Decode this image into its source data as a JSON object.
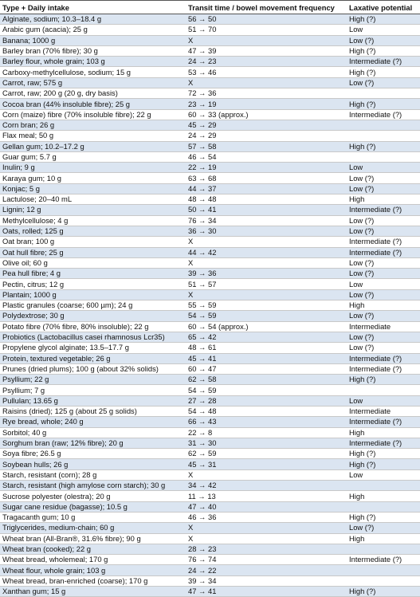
{
  "table": {
    "header": [
      "Type + Daily intake",
      "Transit time / bowel movement frequency",
      "Laxative potential"
    ],
    "rows": [
      {
        "type": "Alginate, sodium; 10.3–18.4 g",
        "transit": "56 → 50",
        "laxative": "High (?)"
      },
      {
        "type": "Arabic gum (acacia); 25 g",
        "transit": "51 → 70",
        "laxative": "Low"
      },
      {
        "type": "Banana; 1000 g",
        "transit": "X",
        "laxative": "Low (?)"
      },
      {
        "type": "Barley bran (70% fibre); 30 g",
        "transit": "47 → 39",
        "laxative": "High (?)"
      },
      {
        "type": "Barley flour, whole grain; 103 g",
        "transit": "24 → 23",
        "laxative": "Intermediate (?)"
      },
      {
        "type": "Carboxy-methylcellulose, sodium; 15 g",
        "transit": "53 → 46",
        "laxative": "High (?)"
      },
      {
        "type": "Carrot, raw; 575 g",
        "transit": "X",
        "laxative": "Low (?)"
      },
      {
        "type": "Carrot, raw; 200 g (20 g, dry basis)",
        "transit": "72 → 36"
      },
      {
        "type": "Cocoa bran (44% insoluble fibre); 25 g",
        "transit": "23 → 19",
        "laxative": "High (?)"
      },
      {
        "type": "Corn (maize) fibre (70% insoluble fibre); 22 g",
        "transit": "60 → 33 (approx.)",
        "laxative": "Intermediate (?)"
      },
      {
        "type": "Corn bran; 26 g",
        "transit": "45 → 29"
      },
      {
        "type": "Flax meal; 50 g",
        "transit": "24 → 29"
      },
      {
        "type": "Gellan gum; 10.2–17.2 g",
        "transit": "57 → 58",
        "laxative": "High (?)"
      },
      {
        "type": "Guar gum; 5.7 g",
        "transit": "46 → 54"
      },
      {
        "type": "Inulin; 9 g",
        "transit": "22 → 19",
        "laxative": "Low"
      },
      {
        "type": "Karaya gum; 10 g",
        "transit": "63 → 68",
        "laxative": "Low (?)"
      },
      {
        "type": "Konjac; 5 g",
        "transit": "44 → 37",
        "laxative": "Low (?)"
      },
      {
        "type": "Lactulose; 20–40 mL",
        "transit": "48 → 48",
        "laxative": "High"
      },
      {
        "type": "Lignin; 12 g",
        "transit": "50 → 41",
        "laxative": "Intermediate (?)"
      },
      {
        "type": "Methylcellulose; 4 g",
        "transit": "76 → 34",
        "laxative": "Low (?)"
      },
      {
        "type": "Oats, rolled; 125 g",
        "transit": "36 → 30",
        "laxative": "Low (?)"
      },
      {
        "type": "Oat bran; 100 g",
        "transit": "X",
        "laxative": "Intermediate (?)"
      },
      {
        "type": "Oat hull fibre; 25 g",
        "transit": "44 → 42",
        "laxative": "Intermediate (?)"
      },
      {
        "type": "Olive oil; 60 g",
        "transit": "X",
        "laxative": "Low (?)"
      },
      {
        "type": "Pea hull fibre; 4 g",
        "transit": "39 → 36",
        "laxative": "Low (?)"
      },
      {
        "type": "Pectin, citrus; 12 g",
        "transit": "51 → 57",
        "laxative": "Low"
      },
      {
        "type": "Plantain; 1000 g",
        "transit": "X",
        "laxative": "Low (?)"
      },
      {
        "type": "Plastic granules (coarse; 600 µm); 24 g",
        "transit": "55 → 59",
        "laxative": "High"
      },
      {
        "type": "Polydextrose; 30 g",
        "transit": "54 → 59",
        "laxative": "Low (?)"
      },
      {
        "type": "Potato fibre (70% fibre, 80% insoluble); 22 g",
        "transit": "60 → 54 (approx.)",
        "laxative": "Intermediate"
      },
      {
        "type": "Probiotics (Lactobacillus casei rhamnosus Lcr35)",
        "transit": "65 → 42",
        "laxative": "Low (?)"
      },
      {
        "type": "Propylene glycol alginate; 13.5–17.7 g",
        "transit": "48 → 61",
        "laxative": "Low (?)"
      },
      {
        "type": "Protein, textured vegetable; 26 g",
        "transit": "45 → 41",
        "laxative": "Intermediate (?)"
      },
      {
        "type": "Prunes (dried plums); 100 g (about 32% solids)",
        "transit": "60 → 47",
        "laxative": "Intermediate (?)"
      },
      {
        "type": "Psyllium; 22 g",
        "transit": "62 → 58",
        "laxative": "High (?)"
      },
      {
        "type": "Psyllium; 7 g",
        "transit": "54 → 59"
      },
      {
        "type": "Pullulan; 13.65 g",
        "transit": "27 → 28",
        "laxative": "Low"
      },
      {
        "type": "Raisins (dried); 125 g (about 25 g solids)",
        "transit": "54 → 48",
        "laxative": "Intermediate"
      },
      {
        "type": "Rye bread, whole; 240 g",
        "transit": "66 → 43",
        "laxative": "Intermediate (?)"
      },
      {
        "type": "Sorbitol; 40 g",
        "transit": "22 → 8",
        "laxative": "High"
      },
      {
        "type": "Sorghum bran (raw; 12% fibre); 20 g",
        "transit": "31 → 30",
        "laxative": "Intermediate (?)"
      },
      {
        "type": "Soya fibre; 26.5 g",
        "transit": "62 → 59",
        "laxative": "High (?)"
      },
      {
        "type": "Soybean hulls; 26 g",
        "transit": "45 → 31",
        "laxative": "High (?)"
      },
      {
        "type": "Starch, resistant (corn); 28 g",
        "transit": "X",
        "laxative": "Low"
      },
      {
        "type": "Starch, resistant (high amylose corn starch); 30 g",
        "transit": "34 → 42"
      },
      {
        "type": "Sucrose polyester (olestra); 20 g",
        "transit": "11 → 13",
        "laxative": "High"
      },
      {
        "type": "Sugar cane residue (bagasse); 10.5 g",
        "transit": "47 → 40"
      },
      {
        "type": "Tragacanth gum; 10 g",
        "transit": "46 → 36",
        "laxative": "High (?)"
      },
      {
        "type": "Triglycerides, medium-chain; 60 g",
        "transit": "X",
        "laxative": "Low (?)"
      },
      {
        "type": "Wheat bran (All-Bran®, 31.6% fibre); 90 g",
        "transit": "X",
        "laxative": "High"
      },
      {
        "type": "Wheat bran (cooked); 22 g",
        "transit": "28 → 23"
      },
      {
        "type": "Wheat bread, wholemeal; 170 g",
        "transit": "76 → 74",
        "laxative": "Intermediate (?)"
      },
      {
        "type": "Wheat flour, whole grain; 103 g",
        "transit": "24 → 22"
      },
      {
        "type": "Wheat bread, bran-enriched (coarse); 170 g",
        "transit": "39 → 34"
      },
      {
        "type": "Xanthan gum; 15 g",
        "transit": "47 → 41",
        "laxative": "High (?)"
      }
    ]
  }
}
